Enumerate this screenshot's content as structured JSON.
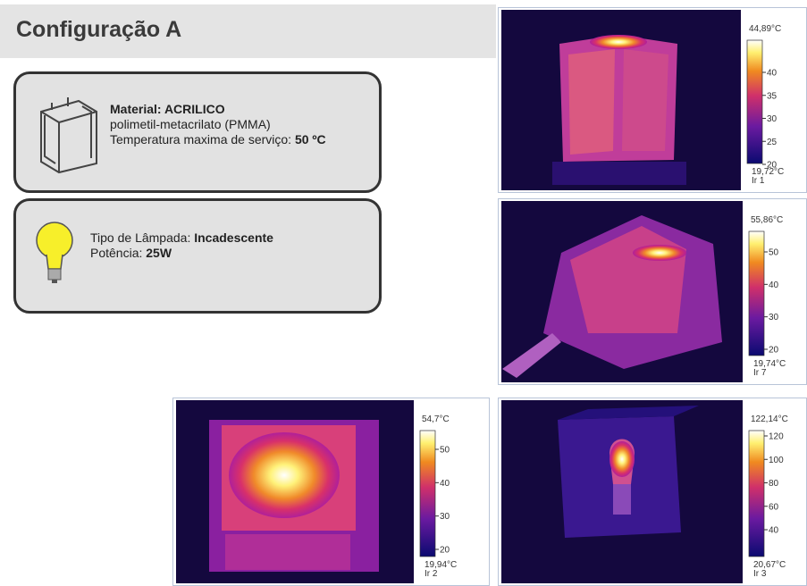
{
  "header": {
    "title": "Configuração A"
  },
  "material_card": {
    "material": "Material: ACRILICO",
    "description": "polimetil-metacrilato (PMMA)",
    "temperature_label": "Temperatura maxima de serviço:",
    "temperature_value": "50 ºC"
  },
  "lamp_card": {
    "type_label": "Tipo de Lâmpada:",
    "type_value": "Incadescente",
    "power_label": "Potência:",
    "power_value": "25W"
  },
  "thermal_images": [
    {
      "max": "44,89°C",
      "ticks": [
        40,
        35,
        30,
        25,
        20
      ],
      "min": "19,72°C",
      "label": "Ir 1"
    },
    {
      "max": "55,86°C",
      "ticks": [
        50,
        40,
        30,
        20
      ],
      "min": "19,74°C",
      "label": "Ir 7"
    },
    {
      "max": "54,7°C",
      "ticks": [
        50,
        40,
        30,
        20
      ],
      "min": "19,94°C",
      "label": "Ir 2"
    },
    {
      "max": "122,14°C",
      "ticks": [
        120,
        100,
        80,
        60,
        40
      ],
      "min": "20,67°C",
      "label": "Ir 3"
    }
  ]
}
